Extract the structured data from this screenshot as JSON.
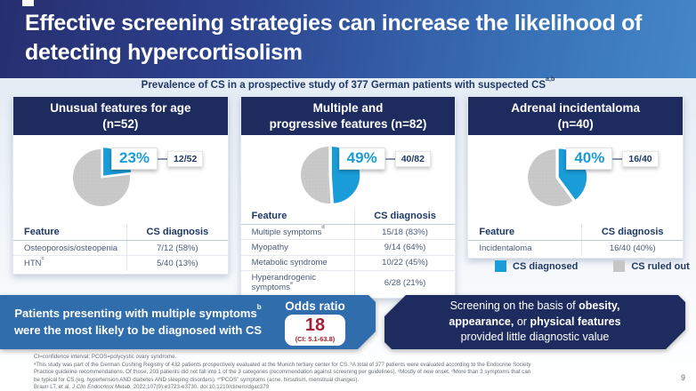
{
  "slide": {
    "title_line1": "Effective screening strategies can increase the likelihood of",
    "title_line2": "detecting hypercortisolism",
    "subtitle_text": "Prevalence of CS in a prospective study of 377 German patients with suspected CS",
    "subtitle_sup": "a,b",
    "page_number": "9"
  },
  "panels": [
    {
      "header_line1": "Unusual features for age",
      "header_line2": "(n=52)",
      "pie_percent": 23,
      "pie_label": "23%",
      "pie_fraction": "12/52",
      "table": {
        "col_feature": "Feature",
        "col_value": "CS diagnosis",
        "rows": [
          {
            "feature": "Osteoporosis/osteopenia",
            "sup": "",
            "value": "7/12 (58%)"
          },
          {
            "feature": "HTN",
            "sup": "c",
            "value": "5/40 (13%)"
          }
        ]
      }
    },
    {
      "header_line1": "Multiple and",
      "header_line2": "progressive features (n=82)",
      "pie_percent": 49,
      "pie_label": "49%",
      "pie_fraction": "40/82",
      "table": {
        "col_feature": "Feature",
        "col_value": "CS diagnosis",
        "rows": [
          {
            "feature": "Multiple symptoms",
            "sup": "d",
            "value": "15/18 (83%)"
          },
          {
            "feature": "Myopathy",
            "sup": "",
            "value": "9/14 (64%)"
          },
          {
            "feature": "Metabolic syndrome",
            "sup": "",
            "value": "10/22 (45%)"
          },
          {
            "feature": "Hyperandrogenic symptoms",
            "sup": "e",
            "value": "6/28 (21%)"
          }
        ]
      }
    },
    {
      "header_line1": "Adrenal incidentaloma",
      "header_line2": "(n=40)",
      "pie_percent": 40,
      "pie_label": "40%",
      "pie_fraction": "16/40",
      "table": {
        "col_feature": "Feature",
        "col_value": "CS diagnosis",
        "rows": [
          {
            "feature": "Incidentaloma",
            "sup": "",
            "value": "16/40 (40%)"
          }
        ]
      }
    }
  ],
  "chart_data": [
    {
      "type": "pie",
      "title": "Unusual features for age (n=52)",
      "labels": [
        "CS diagnosed",
        "CS ruled out"
      ],
      "values": [
        23,
        77
      ],
      "fraction_diagnosed": "12/52",
      "colors": [
        "#1A9CD8",
        "#C9C9C9"
      ]
    },
    {
      "type": "pie",
      "title": "Multiple and progressive features (n=82)",
      "labels": [
        "CS diagnosed",
        "CS ruled out"
      ],
      "values": [
        49,
        51
      ],
      "fraction_diagnosed": "40/82",
      "colors": [
        "#1A9CD8",
        "#C9C9C9"
      ]
    },
    {
      "type": "pie",
      "title": "Adrenal incidentaloma (n=40)",
      "labels": [
        "CS diagnosed",
        "CS ruled out"
      ],
      "values": [
        40,
        60
      ],
      "fraction_diagnosed": "16/40",
      "colors": [
        "#1A9CD8",
        "#C9C9C9"
      ]
    }
  ],
  "legend": {
    "diagnosed": "CS diagnosed",
    "ruled_out": "CS ruled out"
  },
  "callout_left": {
    "line1": "Patients presenting with multiple symptoms",
    "line1_sup": "b",
    "line2": "were the most likely to be diagnosed with CS"
  },
  "odds_ratio": {
    "label": "Odds ratio",
    "value": "18",
    "ci": "(CI: 5.1-63.8)"
  },
  "callout_right": {
    "l1_normal": "Screening on the basis of ",
    "l1_bold": "obesity,",
    "l2_bold1": "appearance,",
    "l2_normal": " or ",
    "l2_bold2": "physical features",
    "l3": "provided little diagnostic value"
  },
  "footnotes": {
    "line1": "CI=confidence interval; PCOS=polycystic ovary syndrome.",
    "line2": "ᵃThis study was part of the German Cushing Registry of 432 patients prospectively evaluated at the Munich tertiary center for CS. ᵇA total of 377 patients were evaluated according to the Endocrine Society",
    "line3": "Practice guideline recommendations. Of those, 203 patients did not fall into 1 of the 3 categories (recommendation against screening per guidelines). ᶜMostly of new onset. ᵈMore than 3 symptoms that can",
    "line4": "be typical for CS (eg, hypertension AND diabetes AND sleeping disorders). ᵉ“PCOS” symptoms (acne, hirsutism, menstrual changes).",
    "ref_pre": "Braun LT, et al. ",
    "ref_italic": "J Clin Endocrinol Metab.",
    "ref_post": " 2022;107(9):e3723-e3730. doi:10.1210/clinem/dgac379"
  },
  "colors": {
    "accent_blue": "#1A9CD8",
    "navy": "#1D2B5F",
    "mid_blue": "#2F6DAD",
    "pie_gray": "#C9C9C9",
    "odds_red": "#A32035"
  }
}
